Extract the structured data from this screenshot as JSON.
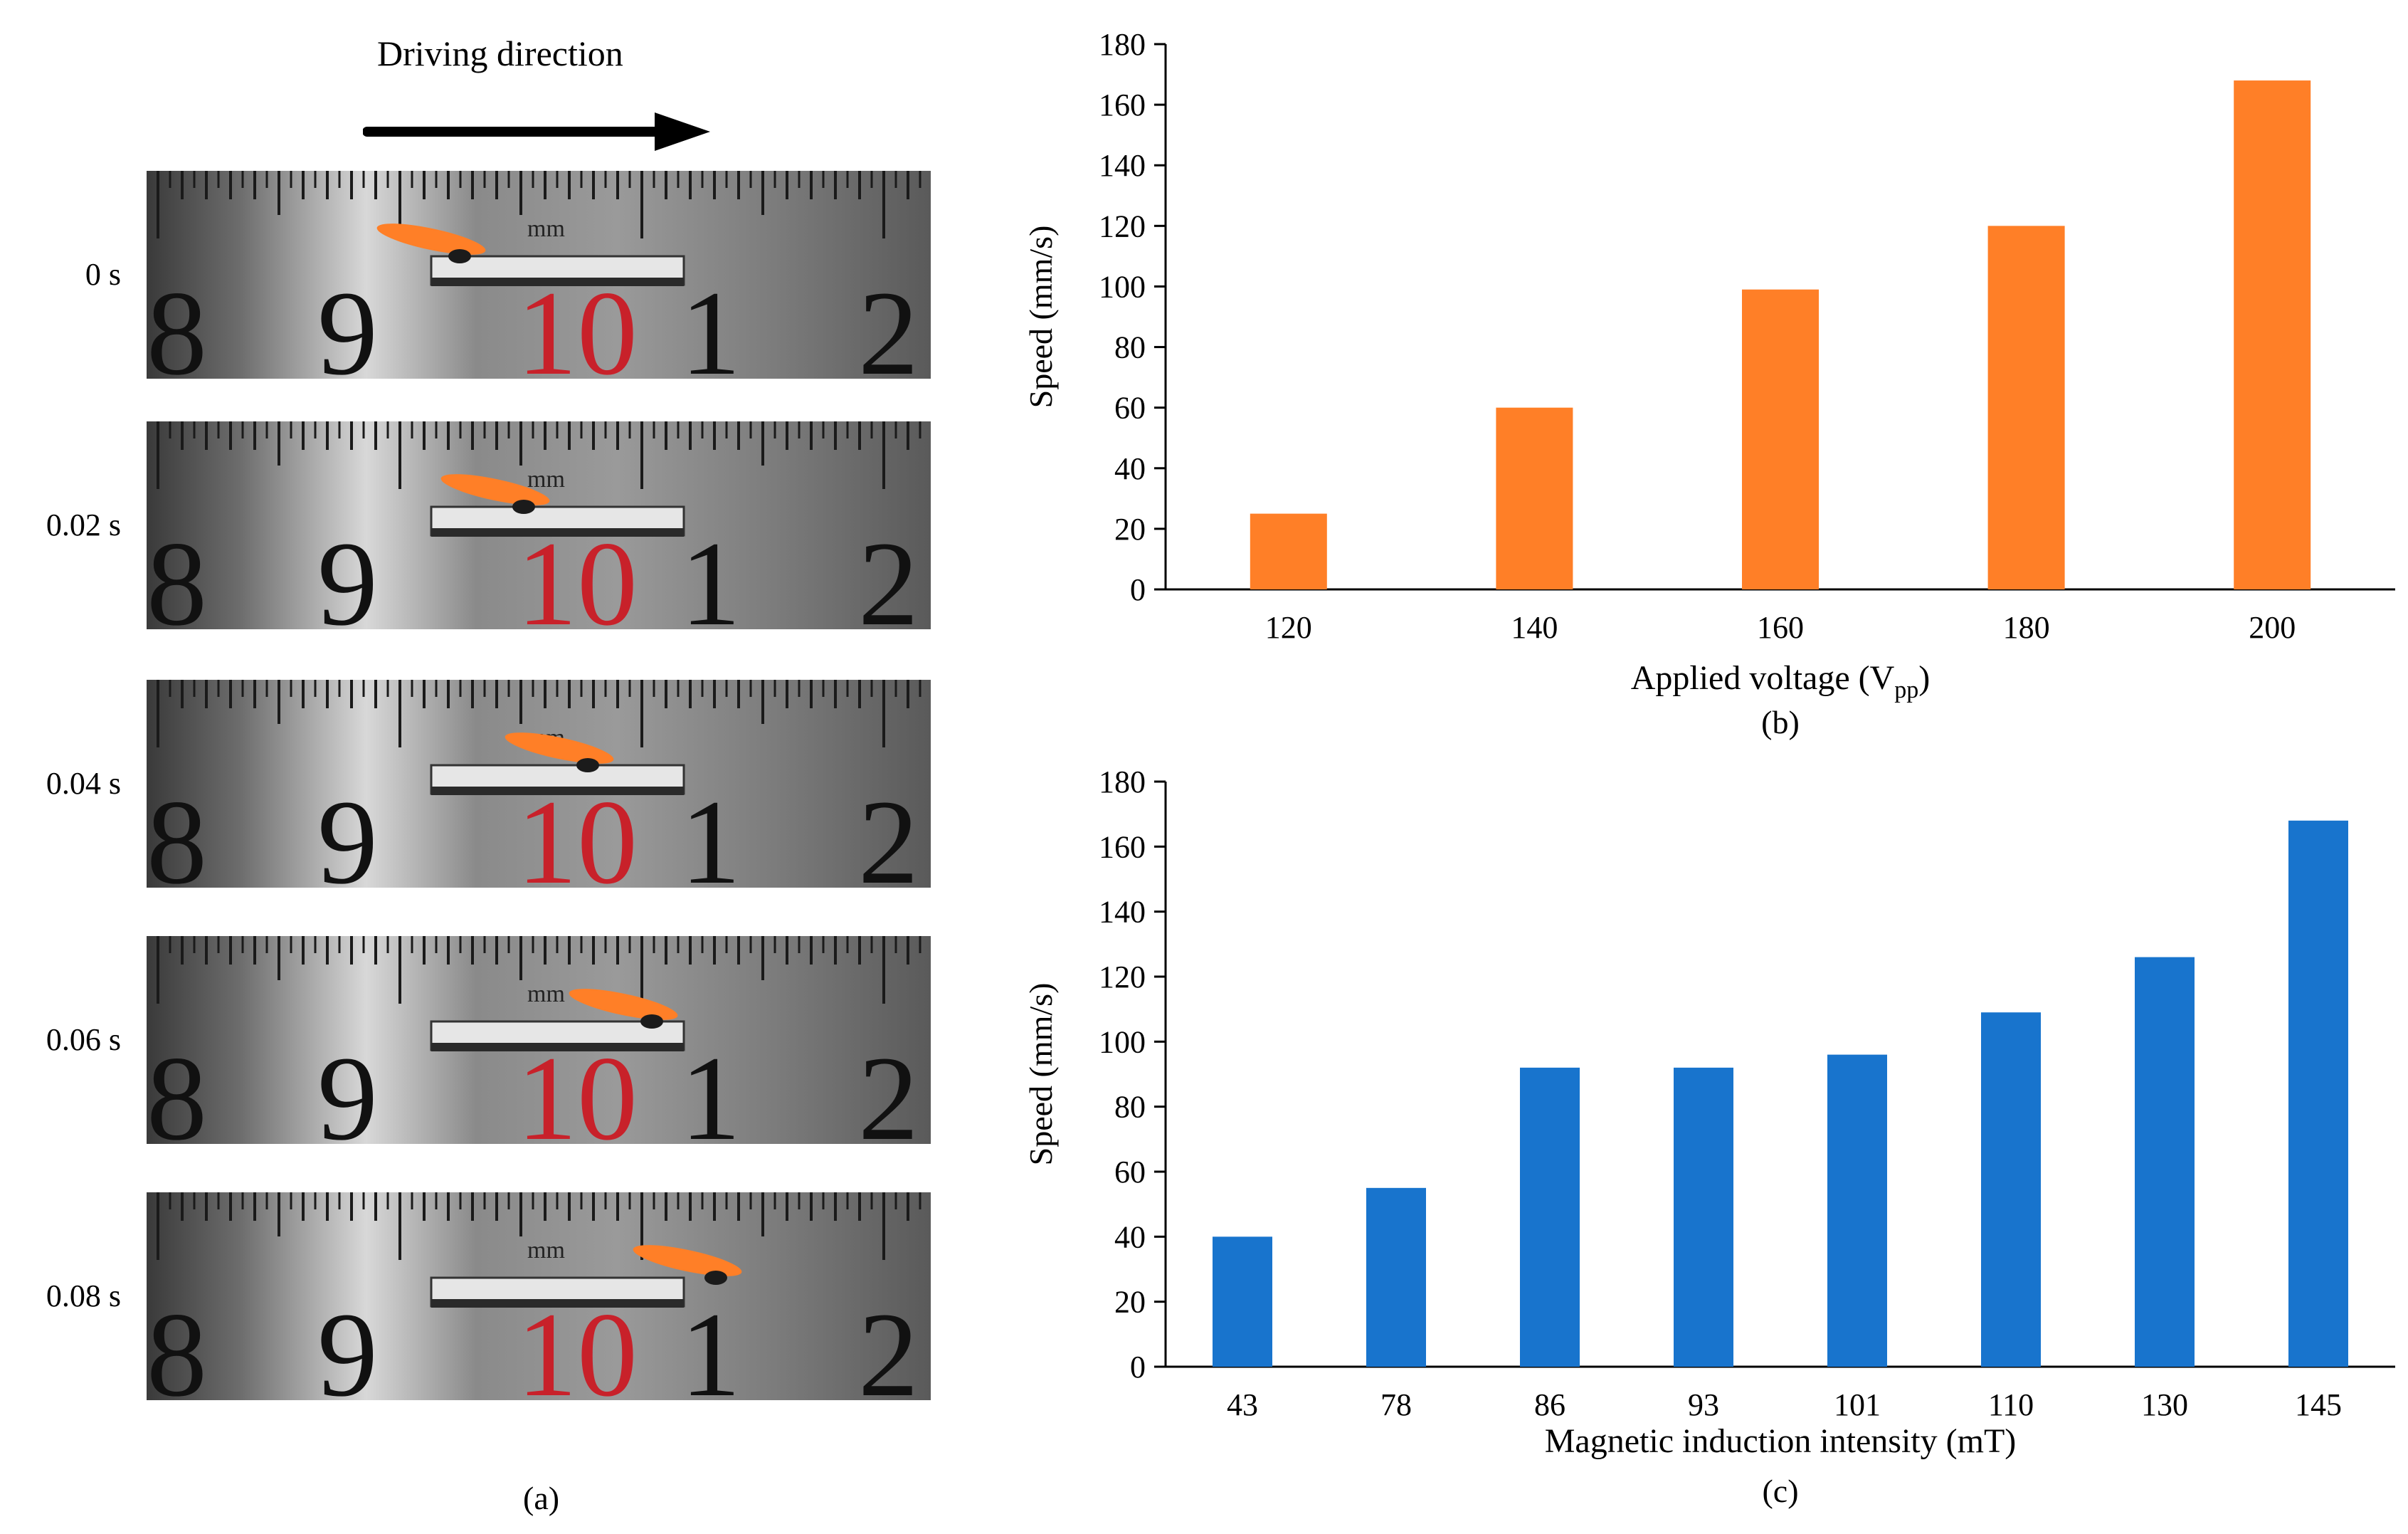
{
  "panel_a": {
    "title": "Driving direction",
    "caption": "(a)",
    "frames": [
      {
        "time": "0 s",
        "progress": 0.0
      },
      {
        "time": "0.02 s",
        "progress": 0.25
      },
      {
        "time": "0.04 s",
        "progress": 0.5
      },
      {
        "time": "0.06 s",
        "progress": 0.75
      },
      {
        "time": "0.08 s",
        "progress": 1.0
      }
    ],
    "ruler": {
      "numbers": [
        "8",
        "9",
        "10",
        "1",
        "2"
      ],
      "unit": "mm"
    }
  },
  "colors": {
    "orange": "#FF7F27",
    "blue": "#1874CD",
    "ruler_red": "#C8212A"
  },
  "chart_data": [
    {
      "type": "bar",
      "title": "",
      "caption": "(b)",
      "categories": [
        "120",
        "140",
        "160",
        "180",
        "200"
      ],
      "values": [
        25,
        60,
        99,
        120,
        168
      ],
      "xlabel": "Applied voltage (V",
      "xlabel_sub": "pp",
      "xlabel_end": ")",
      "ylabel": "Speed (mm/s)",
      "ylim": [
        0,
        180
      ],
      "yticks": [
        "0",
        "20",
        "40",
        "60",
        "80",
        "100",
        "120",
        "140",
        "160",
        "180"
      ],
      "grid": false
    },
    {
      "type": "bar",
      "title": "",
      "caption": "(c)",
      "categories": [
        "43",
        "78",
        "86",
        "93",
        "101",
        "110",
        "130",
        "145"
      ],
      "values": [
        40,
        55,
        92,
        92,
        96,
        109,
        126,
        168
      ],
      "xlabel": "Magnetic induction intensity (mT)",
      "ylabel": "Speed (mm/s)",
      "ylim": [
        0,
        180
      ],
      "yticks": [
        "0",
        "20",
        "40",
        "60",
        "80",
        "100",
        "120",
        "140",
        "160",
        "180"
      ],
      "grid": false
    }
  ]
}
